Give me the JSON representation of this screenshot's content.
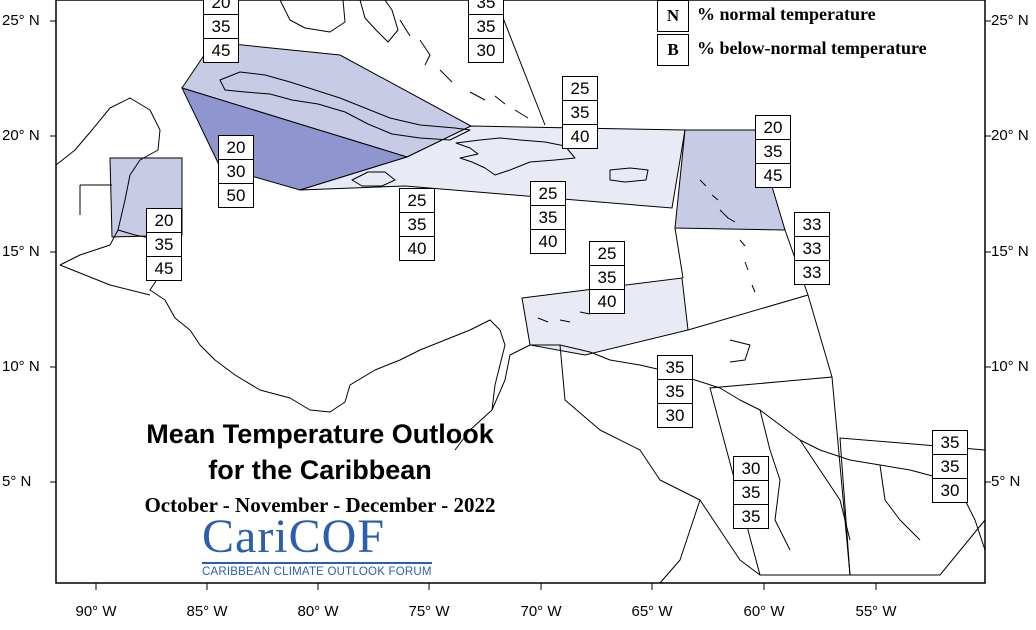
{
  "title_line1": "Mean Temperature Outlook",
  "title_line2": "for the Caribbean",
  "period": "October - November - December - 2022",
  "logo": {
    "name_prefix": "Cari",
    "name_suffix": "COF",
    "subtitle": "CARIBBEAN CLIMATE OUTLOOK FORUM"
  },
  "legend": [
    {
      "key": "N",
      "text": "% normal temperature"
    },
    {
      "key": "B",
      "text": "% below-normal temperature"
    }
  ],
  "colors": {
    "region_light": "#e8eaf6",
    "region_medium": "#c7cbe6",
    "region_dark": "#8f96cf",
    "border": "#000000",
    "logo_blue": "#2b5fae"
  },
  "longitude_labels": [
    "90° W",
    "85° W",
    "80° W",
    "75° W",
    "70° W",
    "65° W",
    "60° W",
    "55° W"
  ],
  "latitude_labels_left": [
    "25° N",
    "20° N",
    "15° N",
    "10° N",
    "5° N"
  ],
  "latitude_labels_right": [
    "25° N",
    "20° N",
    "15° N",
    "10° N",
    "5° N"
  ],
  "regions": [
    {
      "id": "bahamas-north",
      "values": [
        "20",
        "35",
        "45"
      ]
    },
    {
      "id": "turks-caicos",
      "values": [
        "35",
        "35",
        "30"
      ]
    },
    {
      "id": "hispaniola-north",
      "values": [
        "25",
        "35",
        "40"
      ]
    },
    {
      "id": "cuba-south-jamaica",
      "values": [
        "20",
        "30",
        "50"
      ]
    },
    {
      "id": "leeward-islands",
      "values": [
        "20",
        "35",
        "45"
      ]
    },
    {
      "id": "belize",
      "values": [
        "20",
        "35",
        "45"
      ]
    },
    {
      "id": "jamaica-south",
      "values": [
        "25",
        "35",
        "40"
      ]
    },
    {
      "id": "hispaniola-south",
      "values": [
        "25",
        "35",
        "40"
      ]
    },
    {
      "id": "windward-islands",
      "values": [
        "33",
        "33",
        "33"
      ]
    },
    {
      "id": "abc-islands",
      "values": [
        "25",
        "35",
        "40"
      ]
    },
    {
      "id": "trinidad",
      "values": [
        "35",
        "35",
        "30"
      ]
    },
    {
      "id": "suriname-french-guiana",
      "values": [
        "35",
        "35",
        "30"
      ]
    },
    {
      "id": "guyana",
      "values": [
        "30",
        "35",
        "35"
      ]
    }
  ]
}
